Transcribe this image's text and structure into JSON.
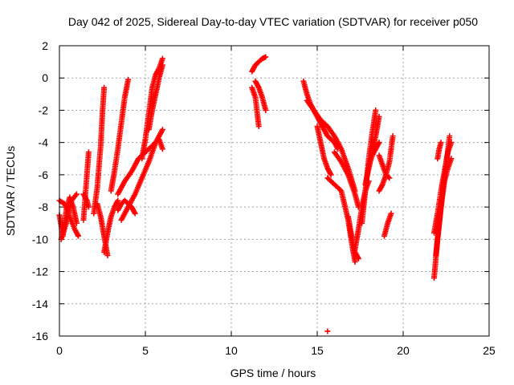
{
  "chart_data": {
    "type": "scatter",
    "title": "Day 042 of 2025, Sidereal Day-to-day VTEC variation (SDTVAR) for receiver p050",
    "xlabel": "GPS time / hours",
    "ylabel": "SDTVAR / TECUs",
    "xlim": [
      0,
      25
    ],
    "ylim": [
      -16,
      2
    ],
    "xticks": [
      "0",
      "5",
      "10",
      "15",
      "20",
      "25"
    ],
    "yticks": [
      "2",
      "0",
      "-2",
      "-4",
      "-6",
      "-8",
      "-10",
      "-12",
      "-14",
      "-16"
    ],
    "grid": true,
    "marker": "+",
    "color": "#ff0000",
    "segments": [
      {
        "x": [
          0.0,
          0.2,
          0.4,
          0.6,
          0.8,
          1.0
        ],
        "y": [
          -8.5,
          -9.8,
          -8.2,
          -7.4,
          -8.0,
          -9.0
        ]
      },
      {
        "x": [
          0.0,
          0.3,
          0.6,
          0.9,
          1.1
        ],
        "y": [
          -7.6,
          -7.8,
          -8.6,
          -9.4,
          -9.8
        ]
      },
      {
        "x": [
          0.1,
          0.4,
          0.7,
          1.0
        ],
        "y": [
          -10.0,
          -9.0,
          -7.6,
          -7.2
        ]
      },
      {
        "x": [
          1.4,
          1.5,
          1.6,
          1.7
        ],
        "y": [
          -8.8,
          -7.4,
          -6.0,
          -4.6
        ]
      },
      {
        "x": [
          1.4,
          1.6,
          1.7
        ],
        "y": [
          -7.2,
          -7.6,
          -8.0
        ]
      },
      {
        "x": [
          2.0,
          2.2,
          2.4,
          2.5,
          2.6
        ],
        "y": [
          -8.4,
          -6.8,
          -4.2,
          -2.2,
          -0.6
        ]
      },
      {
        "x": [
          2.2,
          2.4,
          2.6,
          2.8
        ],
        "y": [
          -7.8,
          -8.6,
          -9.8,
          -11.0
        ]
      },
      {
        "x": [
          2.6,
          2.8,
          3.0,
          3.2,
          3.4
        ],
        "y": [
          -10.8,
          -9.6,
          -8.6,
          -8.0,
          -7.6
        ]
      },
      {
        "x": [
          3.0,
          3.2,
          3.4,
          3.6,
          3.8,
          4.0
        ],
        "y": [
          -7.0,
          -5.8,
          -4.4,
          -2.8,
          -1.2,
          -0.1
        ]
      },
      {
        "x": [
          3.4,
          3.8,
          4.2,
          4.6,
          5.0,
          5.4,
          5.8,
          6.0
        ],
        "y": [
          -7.2,
          -6.4,
          -5.8,
          -5.0,
          -4.6,
          -4.2,
          -3.8,
          -4.4
        ]
      },
      {
        "x": [
          3.4,
          3.6,
          3.8,
          4.0,
          4.2,
          4.4
        ],
        "y": [
          -8.2,
          -7.8,
          -7.6,
          -7.8,
          -8.0,
          -8.4
        ]
      },
      {
        "x": [
          3.6,
          4.0,
          4.4,
          4.8,
          5.2,
          5.6,
          6.0
        ],
        "y": [
          -8.8,
          -8.0,
          -7.2,
          -6.2,
          -5.2,
          -4.0,
          -3.2
        ]
      },
      {
        "x": [
          4.8,
          5.0,
          5.2,
          5.4,
          5.6,
          5.8,
          6.0
        ],
        "y": [
          -5.0,
          -3.8,
          -2.2,
          -0.6,
          0.2,
          0.6,
          1.2
        ]
      },
      {
        "x": [
          5.2,
          5.4,
          5.6,
          5.8,
          6.0
        ],
        "y": [
          -3.2,
          -2.0,
          -1.0,
          0.0,
          0.8
        ]
      },
      {
        "x": [
          11.2,
          11.4,
          11.6,
          11.8,
          12.0
        ],
        "y": [
          0.4,
          0.8,
          1.0,
          1.2,
          1.3
        ]
      },
      {
        "x": [
          11.2,
          11.4,
          11.6
        ],
        "y": [
          -0.6,
          -1.2,
          -3.0
        ]
      },
      {
        "x": [
          11.4,
          11.6,
          11.8,
          12.0
        ],
        "y": [
          -0.2,
          -0.6,
          -1.2,
          -2.0
        ]
      },
      {
        "x": [
          14.2,
          14.4,
          14.6,
          14.8,
          15.0,
          15.2,
          15.4,
          15.6,
          15.8,
          16.0,
          16.2
        ],
        "y": [
          -0.2,
          -1.0,
          -1.6,
          -2.0,
          -2.4,
          -2.8,
          -3.2,
          -3.6,
          -3.8,
          -4.0,
          -4.4
        ]
      },
      {
        "x": [
          14.4,
          14.8,
          15.2,
          15.6,
          16.0,
          16.4,
          16.8,
          17.2
        ],
        "y": [
          -1.4,
          -2.0,
          -2.6,
          -3.0,
          -3.6,
          -4.4,
          -5.6,
          -7.0
        ]
      },
      {
        "x": [
          15.0,
          15.2,
          15.4,
          15.6,
          15.8
        ],
        "y": [
          -3.0,
          -4.0,
          -5.0,
          -5.6,
          -6.0
        ]
      },
      {
        "x": [
          15.6,
          16.0,
          16.4,
          16.8,
          17.0,
          17.2
        ],
        "y": [
          -6.2,
          -6.6,
          -7.0,
          -8.8,
          -10.2,
          -11.4
        ]
      },
      {
        "x": [
          16.0,
          16.4,
          16.8,
          17.2,
          17.4
        ],
        "y": [
          -4.6,
          -5.2,
          -6.0,
          -7.2,
          -8.0
        ]
      },
      {
        "x": [
          16.8,
          17.0,
          17.2,
          17.4
        ],
        "y": [
          -8.6,
          -9.8,
          -10.8,
          -11.2
        ]
      },
      {
        "x": [
          17.2,
          17.4,
          17.6,
          17.8,
          18.0
        ],
        "y": [
          -10.6,
          -9.4,
          -8.0,
          -7.0,
          -6.4
        ]
      },
      {
        "x": [
          17.6,
          17.8,
          18.0,
          18.2,
          18.4
        ],
        "y": [
          -9.0,
          -7.0,
          -5.0,
          -3.4,
          -2.0
        ]
      },
      {
        "x": [
          17.8,
          18.0,
          18.2,
          18.4,
          18.6
        ],
        "y": [
          -6.6,
          -5.6,
          -4.6,
          -3.6,
          -2.4
        ]
      },
      {
        "x": [
          18.0,
          18.2,
          18.4,
          18.6
        ],
        "y": [
          -5.4,
          -4.8,
          -4.4,
          -4.0
        ]
      },
      {
        "x": [
          18.6,
          18.8,
          19.0,
          19.2,
          19.4
        ],
        "y": [
          -7.0,
          -6.6,
          -6.0,
          -5.2,
          -3.6
        ]
      },
      {
        "x": [
          18.6,
          18.8,
          19.0,
          19.2
        ],
        "y": [
          -4.8,
          -5.4,
          -6.0,
          -6.2
        ]
      },
      {
        "x": [
          18.9,
          19.1,
          19.3
        ],
        "y": [
          -9.8,
          -9.0,
          -8.4
        ]
      },
      {
        "x": [
          21.8,
          22.0,
          22.2,
          22.4,
          22.6,
          22.8
        ],
        "y": [
          -12.4,
          -10.0,
          -8.0,
          -6.4,
          -5.6,
          -5.0
        ]
      },
      {
        "x": [
          21.8,
          22.0,
          22.2,
          22.4,
          22.6,
          22.8
        ],
        "y": [
          -9.6,
          -8.4,
          -7.0,
          -5.8,
          -4.6,
          -4.0
        ]
      },
      {
        "x": [
          21.9,
          22.1,
          22.3,
          22.5,
          22.7
        ],
        "y": [
          -11.0,
          -9.0,
          -7.0,
          -5.4,
          -3.6
        ]
      },
      {
        "x": [
          22.0,
          22.1,
          22.2
        ],
        "y": [
          -5.0,
          -4.4,
          -4.0
        ]
      },
      {
        "x": [
          15.6
        ],
        "y": [
          -15.7
        ]
      }
    ]
  }
}
